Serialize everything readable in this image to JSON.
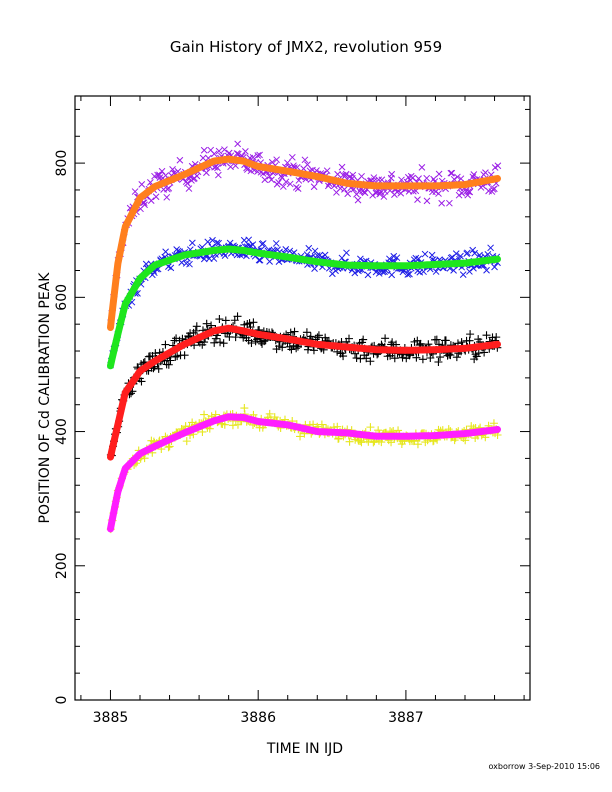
{
  "chart_data": {
    "type": "scatter",
    "title": "Gain History of JMX2, revolution 959",
    "xlabel": "TIME IN IJD",
    "ylabel": "POSITION OF Cd CALIBRATION PEAK",
    "xlim": [
      3884.76,
      3887.84
    ],
    "ylim": [
      0,
      900
    ],
    "xticks": [
      "3885",
      "3886",
      "3887"
    ],
    "yticks": [
      "0",
      "200",
      "400",
      "600",
      "800"
    ],
    "grid": false,
    "legend": "none",
    "footer": "oxborrow   3-Sep-2010 15:06",
    "x_start": 3885.0,
    "x_end": 3887.62,
    "series": [
      {
        "color": "#9a1ee6",
        "marker": "x",
        "scatter": 20,
        "curve_color": "#ff7f1e",
        "trend": [
          [
            3885.0,
            555
          ],
          [
            3885.05,
            650
          ],
          [
            3885.1,
            705
          ],
          [
            3885.2,
            748
          ],
          [
            3885.3,
            765
          ],
          [
            3885.5,
            783
          ],
          [
            3885.7,
            803
          ],
          [
            3885.8,
            806
          ],
          [
            3885.9,
            803
          ],
          [
            3886.0,
            795
          ],
          [
            3886.2,
            788
          ],
          [
            3886.4,
            780
          ],
          [
            3886.6,
            770
          ],
          [
            3886.8,
            766
          ],
          [
            3887.0,
            766
          ],
          [
            3887.2,
            766
          ],
          [
            3887.4,
            768
          ],
          [
            3887.62,
            777
          ]
        ]
      },
      {
        "color": "#1e1ee6",
        "marker": "x",
        "scatter": 14,
        "curve_color": "#1ee61e",
        "trend": [
          [
            3885.0,
            498
          ],
          [
            3885.05,
            545
          ],
          [
            3885.1,
            590
          ],
          [
            3885.2,
            628
          ],
          [
            3885.3,
            648
          ],
          [
            3885.5,
            663
          ],
          [
            3885.7,
            670
          ],
          [
            3885.8,
            672
          ],
          [
            3885.9,
            670
          ],
          [
            3886.0,
            666
          ],
          [
            3886.2,
            660
          ],
          [
            3886.4,
            653
          ],
          [
            3886.6,
            648
          ],
          [
            3886.8,
            647
          ],
          [
            3887.0,
            647
          ],
          [
            3887.2,
            649
          ],
          [
            3887.4,
            651
          ],
          [
            3887.62,
            657
          ]
        ]
      },
      {
        "color": "#000000",
        "marker": "+",
        "scatter": 17,
        "curve_color": "#ff1e1e",
        "trend": [
          [
            3885.0,
            362
          ],
          [
            3885.05,
            410
          ],
          [
            3885.1,
            458
          ],
          [
            3885.2,
            490
          ],
          [
            3885.3,
            505
          ],
          [
            3885.5,
            530
          ],
          [
            3885.7,
            550
          ],
          [
            3885.8,
            554
          ],
          [
            3885.9,
            550
          ],
          [
            3886.0,
            545
          ],
          [
            3886.2,
            538
          ],
          [
            3886.4,
            530
          ],
          [
            3886.6,
            526
          ],
          [
            3886.8,
            522
          ],
          [
            3887.0,
            521
          ],
          [
            3887.2,
            522
          ],
          [
            3887.4,
            524
          ],
          [
            3887.62,
            530
          ]
        ]
      },
      {
        "color": "#e6e61e",
        "marker": "+",
        "scatter": 10,
        "curve_color": "#ff1eff",
        "trend": [
          [
            3885.0,
            255
          ],
          [
            3885.05,
            310
          ],
          [
            3885.1,
            345
          ],
          [
            3885.2,
            367
          ],
          [
            3885.3,
            378
          ],
          [
            3885.5,
            398
          ],
          [
            3885.7,
            416
          ],
          [
            3885.8,
            422
          ],
          [
            3885.9,
            421
          ],
          [
            3886.0,
            415
          ],
          [
            3886.2,
            410
          ],
          [
            3886.4,
            400
          ],
          [
            3886.6,
            398
          ],
          [
            3886.8,
            393
          ],
          [
            3887.0,
            393
          ],
          [
            3887.2,
            394
          ],
          [
            3887.4,
            397
          ],
          [
            3887.62,
            403
          ]
        ]
      }
    ]
  }
}
